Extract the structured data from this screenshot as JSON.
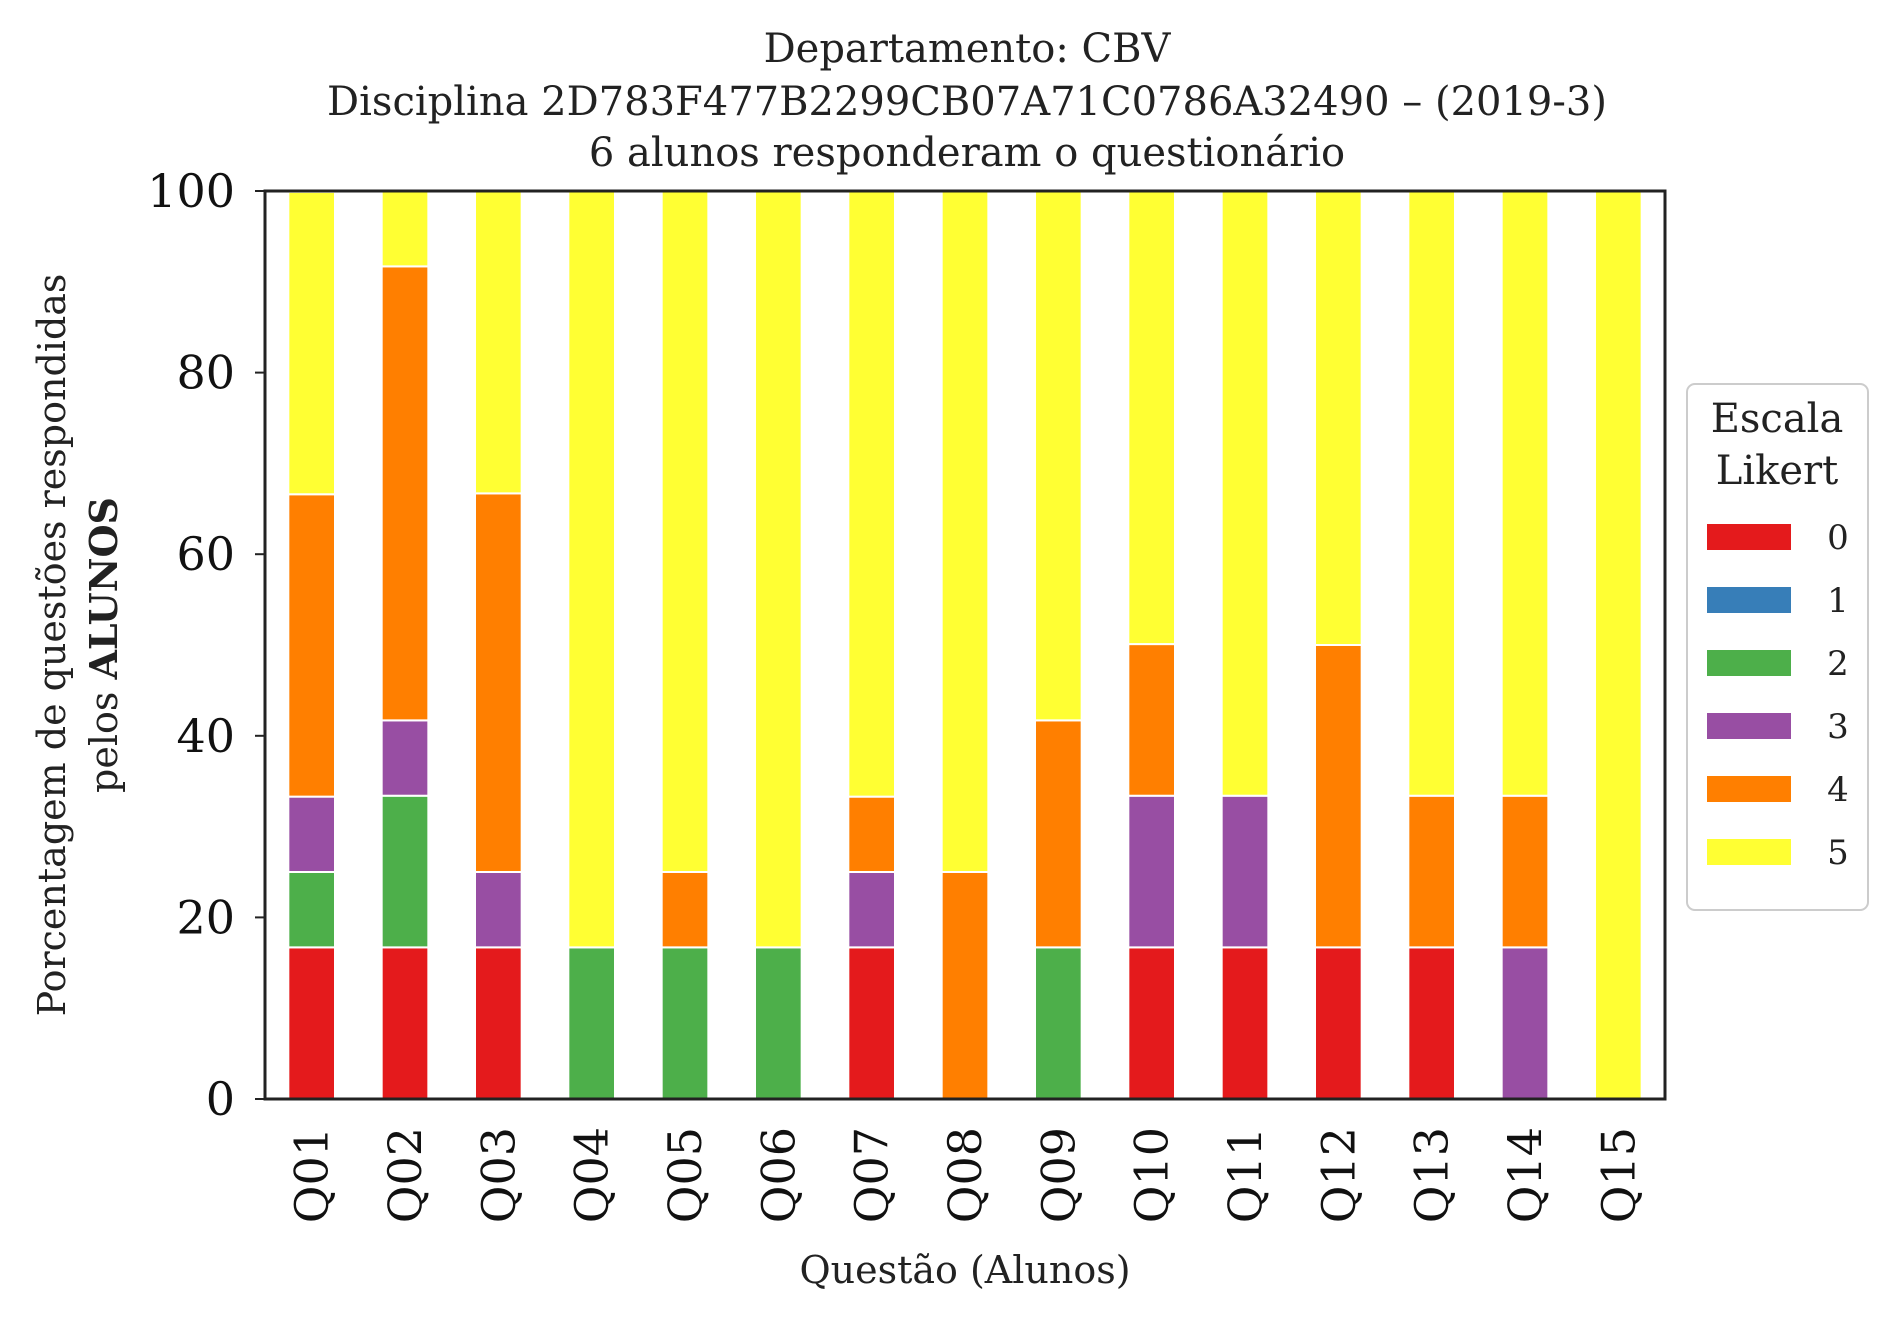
{
  "chart_data": {
    "type": "bar",
    "stacked": true,
    "title_lines": [
      "Departamento: CBV",
      "Disciplina 2D783F477B2299CB07A71C0786A32490 – (2019-3)",
      "6 alunos responderam o questionário"
    ],
    "xlabel": "Questão (Alunos)",
    "ylabel_line1": "Porcentagem de questões respondidas",
    "ylabel_line2_prefix": "pelos ",
    "ylabel_line2_bold": "ALUNOS",
    "ylim": [
      0,
      100
    ],
    "yticks": [
      "0",
      "20",
      "40",
      "60",
      "80",
      "100"
    ],
    "grid": false,
    "legend": {
      "title_lines": [
        "Escala",
        "Likert"
      ],
      "placement": "right"
    },
    "categories": [
      "Q01",
      "Q02",
      "Q03",
      "Q04",
      "Q05",
      "Q06",
      "Q07",
      "Q08",
      "Q09",
      "Q10",
      "Q11",
      "Q12",
      "Q13",
      "Q14",
      "Q15"
    ],
    "series": [
      {
        "name": "0",
        "color": "#e41a1c",
        "values": [
          16.7,
          16.7,
          16.7,
          0,
          0,
          0,
          16.7,
          0,
          0,
          16.7,
          16.7,
          16.7,
          16.7,
          0,
          0
        ]
      },
      {
        "name": "1",
        "color": "#377eb8",
        "values": [
          0,
          0,
          0,
          0,
          0,
          0,
          0,
          0,
          0,
          0,
          0,
          0,
          0,
          0,
          0
        ]
      },
      {
        "name": "2",
        "color": "#4daf4a",
        "values": [
          8.3,
          16.7,
          0,
          16.7,
          16.7,
          16.7,
          0,
          0,
          16.7,
          0,
          0,
          0,
          0,
          0,
          0
        ]
      },
      {
        "name": "3",
        "color": "#984ea3",
        "values": [
          8.3,
          8.3,
          8.3,
          0,
          0,
          0,
          8.3,
          0,
          0,
          16.7,
          16.7,
          0,
          0,
          16.7,
          0
        ]
      },
      {
        "name": "4",
        "color": "#ff7f00",
        "values": [
          33.3,
          50.0,
          41.7,
          0,
          8.3,
          0,
          8.3,
          25.0,
          25.0,
          16.7,
          0,
          33.3,
          16.7,
          16.7,
          0
        ]
      },
      {
        "name": "5",
        "color": "#ffff33",
        "values": [
          33.3,
          8.3,
          33.3,
          83.3,
          75.0,
          83.3,
          66.7,
          75.0,
          58.3,
          50.0,
          66.7,
          50.0,
          66.7,
          66.7,
          100
        ]
      }
    ]
  }
}
